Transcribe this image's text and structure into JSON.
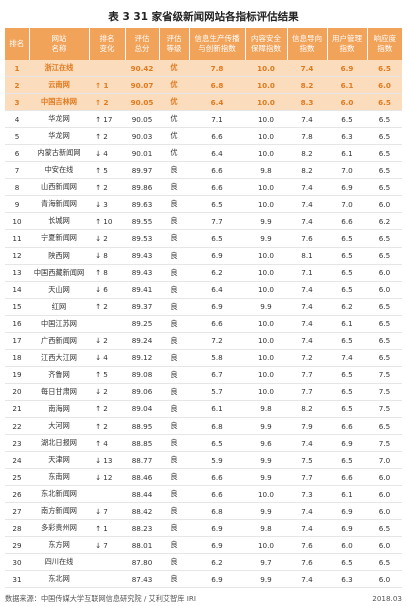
{
  "title": "表 3   31 家省级新闻网站各指标评估结果",
  "headers": [
    {
      "line1": "排名",
      "line2": ""
    },
    {
      "line1": "网站",
      "line2": "名称"
    },
    {
      "line1": "排名",
      "line2": "变化"
    },
    {
      "line1": "评估",
      "line2": "总分"
    },
    {
      "line1": "评估",
      "line2": "等级"
    },
    {
      "line1": "信息生产传播",
      "line2": "与创新指数"
    },
    {
      "line1": "内容安全",
      "line2": "保障指数"
    },
    {
      "line1": "信息导向",
      "line2": "指数"
    },
    {
      "line1": "用户管理",
      "line2": "指数"
    },
    {
      "line1": "响应度",
      "line2": "指数"
    }
  ],
  "rows": [
    {
      "rank": "1",
      "name": "浙江在线",
      "change": "",
      "score": "90.42",
      "grade": "优",
      "info": "7.8",
      "safety": "10.0",
      "guide": "7.4",
      "user": "6.9",
      "resp": "6.5"
    },
    {
      "rank": "2",
      "name": "云南网",
      "change": "↑ 1",
      "score": "90.07",
      "grade": "优",
      "info": "6.8",
      "safety": "10.0",
      "guide": "8.2",
      "user": "6.1",
      "resp": "6.0"
    },
    {
      "rank": "3",
      "name": "中国吉林网",
      "change": "↑ 2",
      "score": "90.05",
      "grade": "优",
      "info": "6.4",
      "safety": "10.0",
      "guide": "8.3",
      "user": "6.0",
      "resp": "6.5"
    },
    {
      "rank": "4",
      "name": "华龙网",
      "change": "↑ 17",
      "score": "90.05",
      "grade": "优",
      "info": "7.1",
      "safety": "10.0",
      "guide": "7.4",
      "user": "6.5",
      "resp": "6.5"
    },
    {
      "rank": "5",
      "name": "华龙网",
      "change": "↑ 2",
      "score": "90.03",
      "grade": "优",
      "info": "6.6",
      "safety": "10.0",
      "guide": "7.8",
      "user": "6.3",
      "resp": "6.5"
    },
    {
      "rank": "6",
      "name": "内蒙古新闻网",
      "change": "↓ 4",
      "score": "90.01",
      "grade": "优",
      "info": "6.4",
      "safety": "10.0",
      "guide": "8.2",
      "user": "6.1",
      "resp": "6.5"
    },
    {
      "rank": "7",
      "name": "中安在线",
      "change": "↑ 5",
      "score": "89.97",
      "grade": "良",
      "info": "6.6",
      "safety": "9.8",
      "guide": "8.2",
      "user": "7.0",
      "resp": "6.5"
    },
    {
      "rank": "8",
      "name": "山西新闻网",
      "change": "↑ 2",
      "score": "89.86",
      "grade": "良",
      "info": "6.6",
      "safety": "10.0",
      "guide": "7.4",
      "user": "6.9",
      "resp": "6.5"
    },
    {
      "rank": "9",
      "name": "青海新闻网",
      "change": "↓ 3",
      "score": "89.63",
      "grade": "良",
      "info": "6.5",
      "safety": "10.0",
      "guide": "7.4",
      "user": "7.0",
      "resp": "6.0"
    },
    {
      "rank": "10",
      "name": "长城网",
      "change": "↑ 10",
      "score": "89.55",
      "grade": "良",
      "info": "7.7",
      "safety": "9.9",
      "guide": "7.4",
      "user": "6.6",
      "resp": "6.2"
    },
    {
      "rank": "11",
      "name": "宁夏新闻网",
      "change": "↓ 2",
      "score": "89.53",
      "grade": "良",
      "info": "6.5",
      "safety": "9.9",
      "guide": "7.6",
      "user": "6.5",
      "resp": "6.5"
    },
    {
      "rank": "12",
      "name": "陕西网",
      "change": "↓ 8",
      "score": "89.43",
      "grade": "良",
      "info": "6.9",
      "safety": "10.0",
      "guide": "8.1",
      "user": "6.5",
      "resp": "6.5"
    },
    {
      "rank": "13",
      "name": "中国西藏新闻网",
      "change": "↑ 8",
      "score": "89.43",
      "grade": "良",
      "info": "6.2",
      "safety": "10.0",
      "guide": "7.1",
      "user": "6.5",
      "resp": "6.0"
    },
    {
      "rank": "14",
      "name": "天山网",
      "change": "↓ 6",
      "score": "89.41",
      "grade": "良",
      "info": "6.4",
      "safety": "10.0",
      "guide": "7.4",
      "user": "6.5",
      "resp": "6.0"
    },
    {
      "rank": "15",
      "name": "红网",
      "change": "↑ 2",
      "score": "89.37",
      "grade": "良",
      "info": "6.9",
      "safety": "9.9",
      "guide": "7.4",
      "user": "6.2",
      "resp": "6.5"
    },
    {
      "rank": "16",
      "name": "中国江苏网",
      "change": "",
      "score": "89.25",
      "grade": "良",
      "info": "6.6",
      "safety": "10.0",
      "guide": "7.4",
      "user": "6.1",
      "resp": "6.5"
    },
    {
      "rank": "17",
      "name": "广西新闻网",
      "change": "↓ 2",
      "score": "89.24",
      "grade": "良",
      "info": "7.2",
      "safety": "10.0",
      "guide": "7.4",
      "user": "6.5",
      "resp": "6.5"
    },
    {
      "rank": "18",
      "name": "江西大江网",
      "change": "↓ 4",
      "score": "89.12",
      "grade": "良",
      "info": "5.8",
      "safety": "10.0",
      "guide": "7.2",
      "user": "7.4",
      "resp": "6.5"
    },
    {
      "rank": "19",
      "name": "齐鲁网",
      "change": "↑ 5",
      "score": "89.08",
      "grade": "良",
      "info": "6.7",
      "safety": "10.0",
      "guide": "7.7",
      "user": "6.5",
      "resp": "7.5"
    },
    {
      "rank": "20",
      "name": "每日甘肃网",
      "change": "↓ 2",
      "score": "89.06",
      "grade": "良",
      "info": "5.7",
      "safety": "10.0",
      "guide": "7.7",
      "user": "6.5",
      "resp": "7.5"
    },
    {
      "rank": "21",
      "name": "南海网",
      "change": "↑ 2",
      "score": "89.04",
      "grade": "良",
      "info": "6.1",
      "safety": "9.8",
      "guide": "8.2",
      "user": "6.5",
      "resp": "7.5"
    },
    {
      "rank": "22",
      "name": "大河网",
      "change": "↑ 2",
      "score": "88.95",
      "grade": "良",
      "info": "6.8",
      "safety": "9.9",
      "guide": "7.9",
      "user": "6.6",
      "resp": "6.5"
    },
    {
      "rank": "23",
      "name": "湖北日报网",
      "change": "↑ 4",
      "score": "88.85",
      "grade": "良",
      "info": "6.5",
      "safety": "9.6",
      "guide": "7.4",
      "user": "6.9",
      "resp": "7.5"
    },
    {
      "rank": "24",
      "name": "天津网",
      "change": "↓ 13",
      "score": "88.77",
      "grade": "良",
      "info": "5.9",
      "safety": "9.9",
      "guide": "7.5",
      "user": "6.5",
      "resp": "7.0"
    },
    {
      "rank": "25",
      "name": "东南网",
      "change": "↓ 12",
      "score": "88.46",
      "grade": "良",
      "info": "6.6",
      "safety": "9.9",
      "guide": "7.7",
      "user": "6.6",
      "resp": "6.0"
    },
    {
      "rank": "26",
      "name": "东北新闻网",
      "change": "",
      "score": "88.44",
      "grade": "良",
      "info": "6.6",
      "safety": "10.0",
      "guide": "7.3",
      "user": "6.1",
      "resp": "6.0"
    },
    {
      "rank": "27",
      "name": "南方新闻网",
      "change": "↓ 7",
      "score": "88.42",
      "grade": "良",
      "info": "6.8",
      "safety": "9.9",
      "guide": "7.4",
      "user": "6.9",
      "resp": "6.0"
    },
    {
      "rank": "28",
      "name": "多彩贵州网",
      "change": "↑ 1",
      "score": "88.23",
      "grade": "良",
      "info": "6.9",
      "safety": "9.8",
      "guide": "7.4",
      "user": "6.9",
      "resp": "6.5"
    },
    {
      "rank": "29",
      "name": "东方网",
      "change": "↓ 7",
      "score": "88.01",
      "grade": "良",
      "info": "6.9",
      "safety": "10.0",
      "guide": "7.6",
      "user": "6.0",
      "resp": "6.0"
    },
    {
      "rank": "30",
      "name": "四川在线",
      "change": "",
      "score": "87.80",
      "grade": "良",
      "info": "6.2",
      "safety": "9.7",
      "guide": "7.6",
      "user": "6.5",
      "resp": "6.5"
    },
    {
      "rank": "31",
      "name": "东北网",
      "change": "",
      "score": "87.43",
      "grade": "良",
      "info": "6.9",
      "safety": "9.9",
      "guide": "7.4",
      "user": "6.3",
      "resp": "6.0"
    }
  ],
  "highlight_color": "#fbdcbc",
  "header_color": "#f2a35a",
  "footer": {
    "source": "数据来源：中国传媒大学互联网信息研究院 / 艾利艾智库 IRI",
    "date": "2018.03"
  }
}
